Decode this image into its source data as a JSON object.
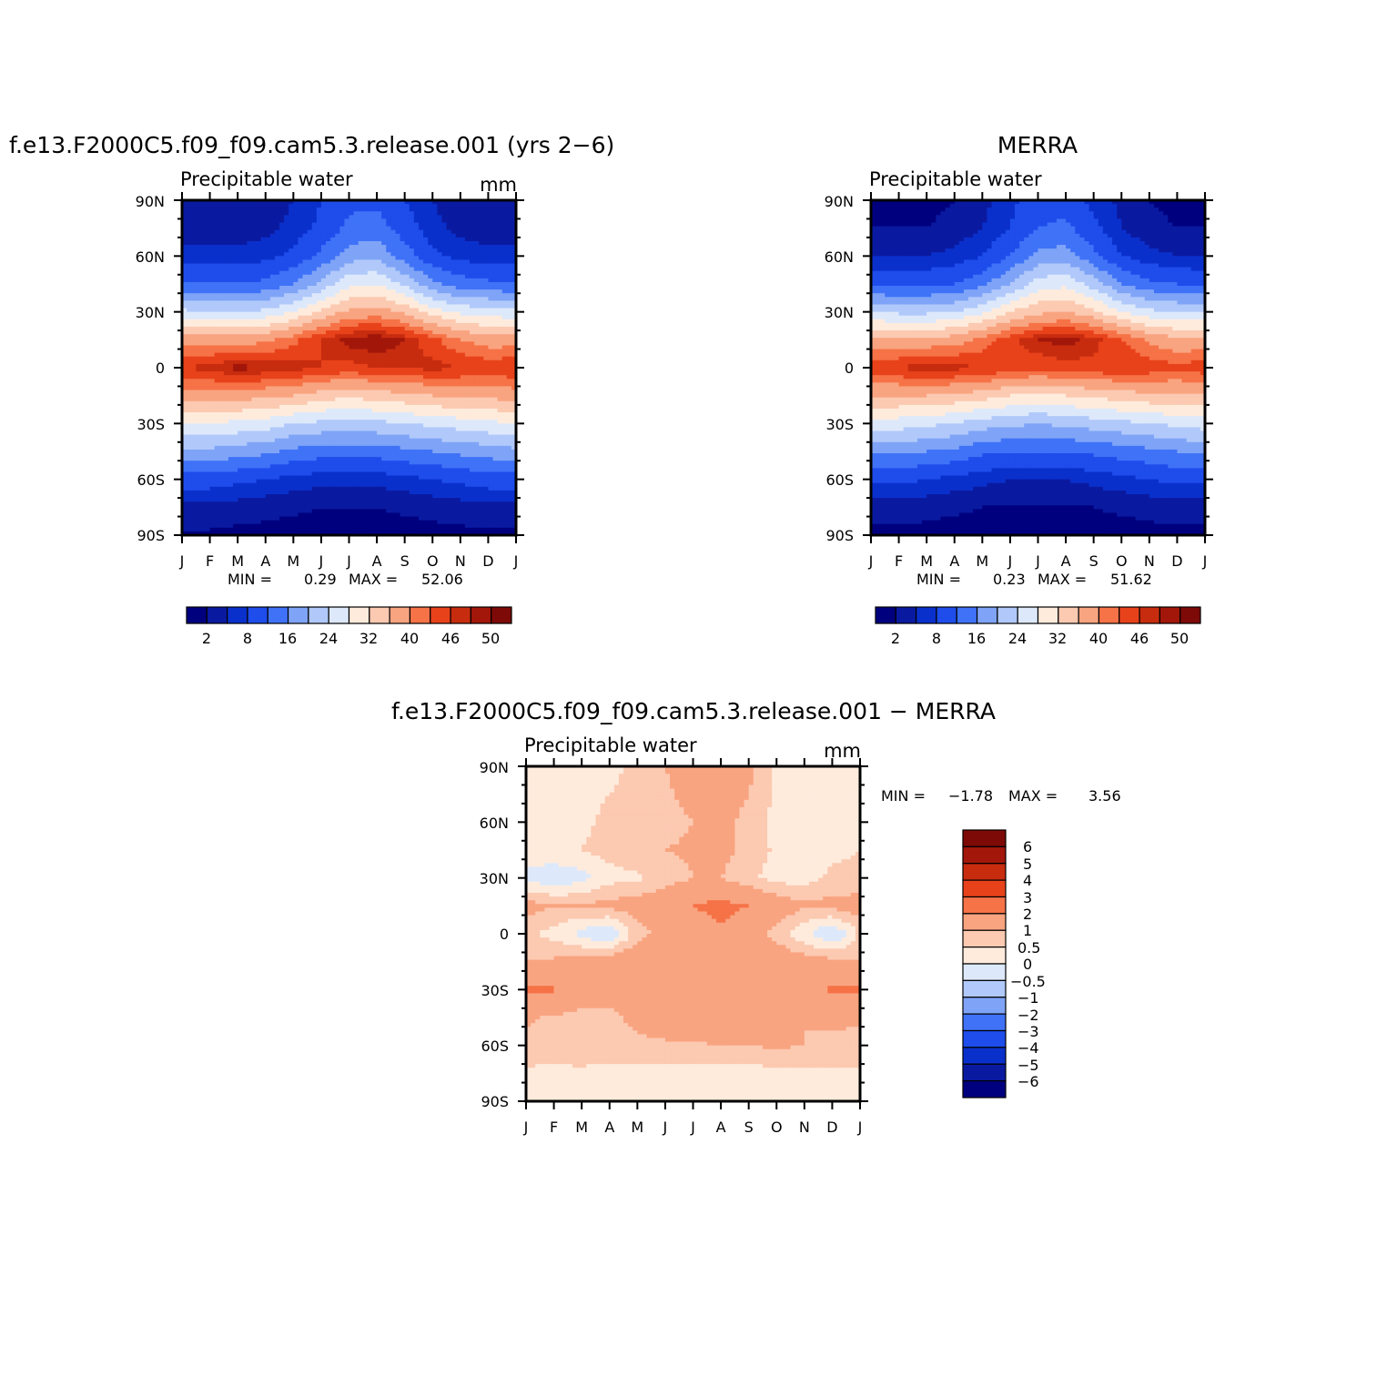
{
  "chart_data": [
    {
      "type": "heatmap",
      "id": "model",
      "title": "f.e13.F2000C5.f09_f09.cam5.3.release.001 (yrs 2−6)",
      "subtitle_left": "Precipitable water",
      "subtitle_right": "mm",
      "x_tick_labels": [
        "J",
        "F",
        "M",
        "A",
        "M",
        "J",
        "J",
        "A",
        "S",
        "O",
        "N",
        "D",
        "J"
      ],
      "y_tick_labels": [
        "90N",
        "60N",
        "30N",
        "0",
        "30S",
        "60S",
        "90S"
      ],
      "ylim": [
        -90,
        90
      ],
      "min_label": "MIN =",
      "min_value": "0.29",
      "max_label": "MAX =",
      "max_value": "52.06",
      "colorbar_levels": [
        "2",
        "8",
        "16",
        "24",
        "32",
        "40",
        "46",
        "50"
      ],
      "field": {
        "lats": [
          -90,
          -75,
          -60,
          -45,
          -30,
          -15,
          0,
          15,
          30,
          45,
          60,
          75,
          90
        ],
        "months": [
          "J",
          "F",
          "M",
          "A",
          "M",
          "J",
          "J",
          "A",
          "S",
          "O",
          "N",
          "D",
          "J"
        ],
        "values": [
          [
            1.5,
            1.5,
            1.2,
            1.0,
            0.8,
            0.6,
            0.5,
            0.6,
            0.8,
            1.0,
            1.2,
            1.4,
            1.5
          ],
          [
            4,
            4,
            3.5,
            3,
            2.5,
            2,
            2,
            2,
            2.5,
            3,
            3.5,
            4,
            4
          ],
          [
            10,
            10,
            9,
            8,
            7,
            6,
            6,
            6,
            7,
            8,
            9,
            10,
            10
          ],
          [
            19,
            19,
            18,
            17,
            15,
            14,
            14,
            14,
            15,
            16,
            17,
            18,
            19
          ],
          [
            28,
            28,
            27,
            26,
            24,
            23,
            22,
            23,
            24,
            25,
            26,
            27,
            28
          ],
          [
            38,
            38,
            38,
            37,
            36,
            34,
            33,
            34,
            35,
            36,
            37,
            37,
            38
          ],
          [
            46,
            47,
            49,
            48,
            47,
            46,
            45,
            46,
            46,
            47,
            46,
            45,
            46
          ],
          [
            38,
            38,
            38,
            39,
            42,
            46,
            49,
            50,
            48,
            44,
            40,
            38,
            38
          ],
          [
            25,
            24,
            24,
            25,
            28,
            33,
            37,
            38,
            35,
            30,
            27,
            26,
            25
          ],
          [
            12,
            12,
            12,
            13,
            16,
            21,
            27,
            28,
            23,
            17,
            14,
            13,
            12
          ],
          [
            6,
            6,
            6,
            7,
            9,
            13,
            18,
            19,
            14,
            9,
            7,
            6,
            6
          ],
          [
            3,
            3,
            3,
            4,
            6,
            9,
            13,
            14,
            10,
            6,
            4,
            3,
            3
          ],
          [
            2,
            2,
            2,
            3,
            5,
            8,
            11,
            11,
            8,
            5,
            3,
            2,
            2
          ]
        ]
      }
    },
    {
      "type": "heatmap",
      "id": "obs",
      "title": "MERRA",
      "subtitle_left": "Precipitable water",
      "subtitle_right": "",
      "x_tick_labels": [
        "J",
        "F",
        "M",
        "A",
        "M",
        "J",
        "J",
        "A",
        "S",
        "O",
        "N",
        "D",
        "J"
      ],
      "y_tick_labels": [
        "90N",
        "60N",
        "30N",
        "0",
        "30S",
        "60S",
        "90S"
      ],
      "ylim": [
        -90,
        90
      ],
      "min_label": "MIN =",
      "min_value": "0.23",
      "max_label": "MAX =",
      "max_value": "51.62",
      "colorbar_levels": [
        "2",
        "8",
        "16",
        "24",
        "32",
        "40",
        "46",
        "50"
      ],
      "field": {
        "lats": [
          -90,
          -75,
          -60,
          -45,
          -30,
          -15,
          0,
          15,
          30,
          45,
          60,
          75,
          90
        ],
        "months": [
          "J",
          "F",
          "M",
          "A",
          "M",
          "J",
          "J",
          "A",
          "S",
          "O",
          "N",
          "D",
          "J"
        ],
        "values": [
          [
            1.2,
            1.2,
            1.0,
            0.8,
            0.6,
            0.5,
            0.4,
            0.5,
            0.6,
            0.8,
            1.0,
            1.1,
            1.2
          ],
          [
            3.5,
            3.5,
            3,
            2.5,
            2,
            1.7,
            1.6,
            1.7,
            2,
            2.5,
            3,
            3.5,
            3.5
          ],
          [
            9,
            9,
            8,
            7,
            6,
            5,
            5,
            5,
            6,
            7,
            8,
            9,
            9
          ],
          [
            17,
            17,
            16,
            15,
            13,
            12,
            12,
            12,
            13,
            14,
            15,
            16,
            17
          ],
          [
            26,
            26,
            25,
            24,
            22,
            21,
            20,
            21,
            22,
            23,
            24,
            25,
            26
          ],
          [
            36,
            36,
            36,
            35,
            34,
            32,
            31,
            32,
            33,
            34,
            35,
            35,
            36
          ],
          [
            45,
            46,
            48,
            47,
            46,
            45,
            44,
            45,
            45,
            46,
            45,
            44,
            45
          ],
          [
            37,
            37,
            37,
            38,
            41,
            45,
            48,
            49,
            47,
            43,
            39,
            37,
            37
          ],
          [
            24,
            23,
            23,
            24,
            27,
            32,
            35,
            36,
            33,
            28,
            25,
            24,
            24
          ],
          [
            11,
            11,
            11,
            12,
            15,
            20,
            26,
            27,
            22,
            16,
            13,
            12,
            11
          ],
          [
            5,
            5,
            5,
            6,
            8,
            12,
            17,
            18,
            13,
            8,
            6,
            5,
            5
          ],
          [
            2,
            2,
            2,
            3,
            5,
            8,
            12,
            13,
            9,
            5,
            3,
            2,
            2
          ],
          [
            1,
            1,
            1,
            2,
            4,
            7,
            10,
            10,
            7,
            4,
            2,
            1,
            1
          ]
        ]
      }
    },
    {
      "type": "heatmap",
      "id": "diff",
      "title": "f.e13.F2000C5.f09_f09.cam5.3.release.001 − MERRA",
      "subtitle_left": "Precipitable water",
      "subtitle_right": "mm",
      "x_tick_labels": [
        "J",
        "F",
        "M",
        "A",
        "M",
        "J",
        "J",
        "A",
        "S",
        "O",
        "N",
        "D",
        "J"
      ],
      "y_tick_labels": [
        "90N",
        "60N",
        "30N",
        "0",
        "30S",
        "60S",
        "90S"
      ],
      "ylim": [
        -90,
        90
      ],
      "min_label": "MIN =",
      "min_value": "−1.78",
      "max_label": "MAX =",
      "max_value": "3.56",
      "colorbar_levels": [
        "6",
        "5",
        "4",
        "3",
        "2",
        "1",
        "0.5",
        "0",
        "−0.5",
        "−1",
        "−2",
        "−3",
        "−4",
        "−5",
        "−6"
      ],
      "field": {
        "lats": [
          -90,
          -75,
          -60,
          -45,
          -30,
          -15,
          0,
          15,
          30,
          45,
          60,
          75,
          90
        ],
        "months": [
          "J",
          "F",
          "M",
          "A",
          "M",
          "J",
          "J",
          "A",
          "S",
          "O",
          "N",
          "D",
          "J"
        ],
        "values": [
          [
            0.3,
            0.3,
            0.3,
            0.3,
            0.3,
            0.3,
            0.3,
            0.3,
            0.3,
            0.3,
            0.3,
            0.3,
            0.3
          ],
          [
            0.4,
            0.4,
            0.4,
            0.3,
            0.3,
            0.3,
            0.3,
            0.3,
            0.3,
            0.3,
            0.4,
            0.4,
            0.4
          ],
          [
            0.8,
            0.7,
            0.8,
            0.9,
            0.9,
            0.9,
            0.9,
            1.0,
            1.0,
            1.1,
            1.0,
            0.9,
            0.8
          ],
          [
            1.1,
            0.9,
            0.8,
            0.9,
            1.1,
            1.4,
            1.6,
            1.6,
            1.4,
            1.2,
            1.0,
            1.1,
            1.1
          ],
          [
            2.2,
            2.1,
            1.4,
            1.2,
            1.3,
            1.4,
            1.6,
            1.6,
            1.5,
            1.4,
            1.6,
            2.2,
            2.2
          ],
          [
            1.0,
            1.1,
            1.3,
            1.5,
            1.6,
            1.6,
            1.7,
            1.9,
            1.7,
            1.5,
            1.3,
            1.2,
            1.0
          ],
          [
            0.6,
            0.3,
            -0.2,
            -0.6,
            0.8,
            1.2,
            1.5,
            1.8,
            1.4,
            0.8,
            0.1,
            -0.6,
            0.6
          ],
          [
            1.3,
            1.0,
            1.1,
            1.2,
            1.3,
            1.6,
            2.0,
            2.3,
            2.0,
            1.4,
            1.1,
            1.2,
            1.3
          ],
          [
            -0.2,
            -0.4,
            -0.2,
            0.3,
            0.4,
            0.7,
            1.0,
            1.0,
            0.6,
            0.3,
            0.3,
            0.6,
            0.6
          ],
          [
            0.4,
            0.4,
            0.5,
            0.7,
            0.9,
            1.0,
            1.1,
            1.2,
            0.8,
            0.4,
            0.3,
            0.4,
            0.5
          ],
          [
            0.3,
            0.3,
            0.4,
            0.6,
            0.7,
            0.8,
            1.0,
            1.2,
            0.8,
            0.3,
            0.1,
            0.2,
            0.3
          ],
          [
            0.2,
            0.3,
            0.4,
            0.5,
            0.6,
            0.9,
            1.2,
            1.4,
            1.0,
            0.4,
            0.2,
            0.2,
            0.2
          ],
          [
            0.2,
            0.2,
            0.3,
            0.4,
            0.6,
            1.0,
            1.4,
            1.6,
            1.2,
            0.4,
            0.2,
            0.2,
            0.2
          ]
        ]
      }
    }
  ],
  "colors": {
    "abs_palette": [
      "#00007F",
      "#0A1AA0",
      "#0A30CC",
      "#1E4DEB",
      "#3F72F7",
      "#7FA4F7",
      "#B1C9FA",
      "#DDE9FB",
      "#FEEBDC",
      "#FCC9B1",
      "#F9A480",
      "#F67247",
      "#E8421B",
      "#C72C0F",
      "#A2170A",
      "#7D0A07"
    ],
    "diff_palette": [
      "#00007F",
      "#0A1AA0",
      "#0A30CC",
      "#1E4DEB",
      "#3F72F7",
      "#7FA4F7",
      "#B1C9FA",
      "#DDE9FB",
      "#FEEBDC",
      "#FCC9B1",
      "#F9A480",
      "#F67247",
      "#E8421B",
      "#C72C0F",
      "#A2170A",
      "#7D0A07"
    ]
  }
}
